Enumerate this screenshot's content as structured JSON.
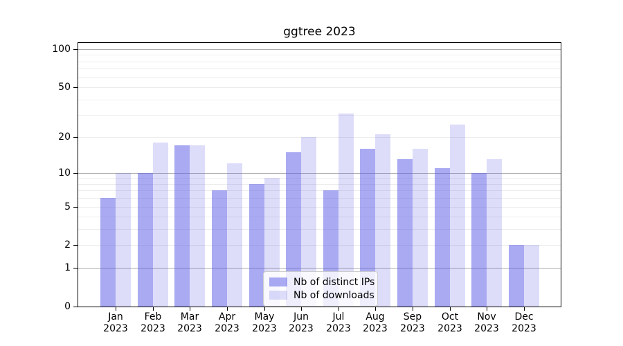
{
  "chart_data": {
    "type": "bar",
    "title": "ggtree 2023",
    "categories": [
      "Jan",
      "Feb",
      "Mar",
      "Apr",
      "May",
      "Jun",
      "Jul",
      "Aug",
      "Sep",
      "Oct",
      "Nov",
      "Dec"
    ],
    "year_label": "2023",
    "series": [
      {
        "name": "Nb of distinct IPs",
        "color": "rgba(85,85,230,0.5)",
        "values": [
          6,
          10,
          17,
          7,
          8,
          15,
          7,
          16,
          13,
          11,
          10,
          2
        ]
      },
      {
        "name": "Nb of downloads",
        "color": "rgba(85,85,230,0.2)",
        "values": [
          10,
          18,
          17,
          12,
          9,
          20,
          31,
          21,
          16,
          25,
          13,
          2
        ]
      }
    ],
    "yscale": "log1p",
    "ylim": [
      0,
      110
    ],
    "yticks": [
      0,
      1,
      2,
      5,
      10,
      20,
      50,
      100
    ],
    "ytick_labels": [
      "0",
      "1",
      "2",
      "5",
      "10",
      "20",
      "50",
      "100"
    ],
    "grid_major": [
      1,
      10,
      100
    ],
    "grid_minor": [
      2,
      3,
      4,
      5,
      6,
      7,
      8,
      9,
      20,
      30,
      40,
      50,
      60,
      70,
      80,
      90
    ],
    "legend_position": "lower center",
    "xlabel": "",
    "ylabel": ""
  },
  "colors": {
    "bar_base": "#5555e6",
    "axis": "#000000",
    "grid_major": "#ababab",
    "grid_minor": "#ececec",
    "legend_border": "#cccccc"
  }
}
